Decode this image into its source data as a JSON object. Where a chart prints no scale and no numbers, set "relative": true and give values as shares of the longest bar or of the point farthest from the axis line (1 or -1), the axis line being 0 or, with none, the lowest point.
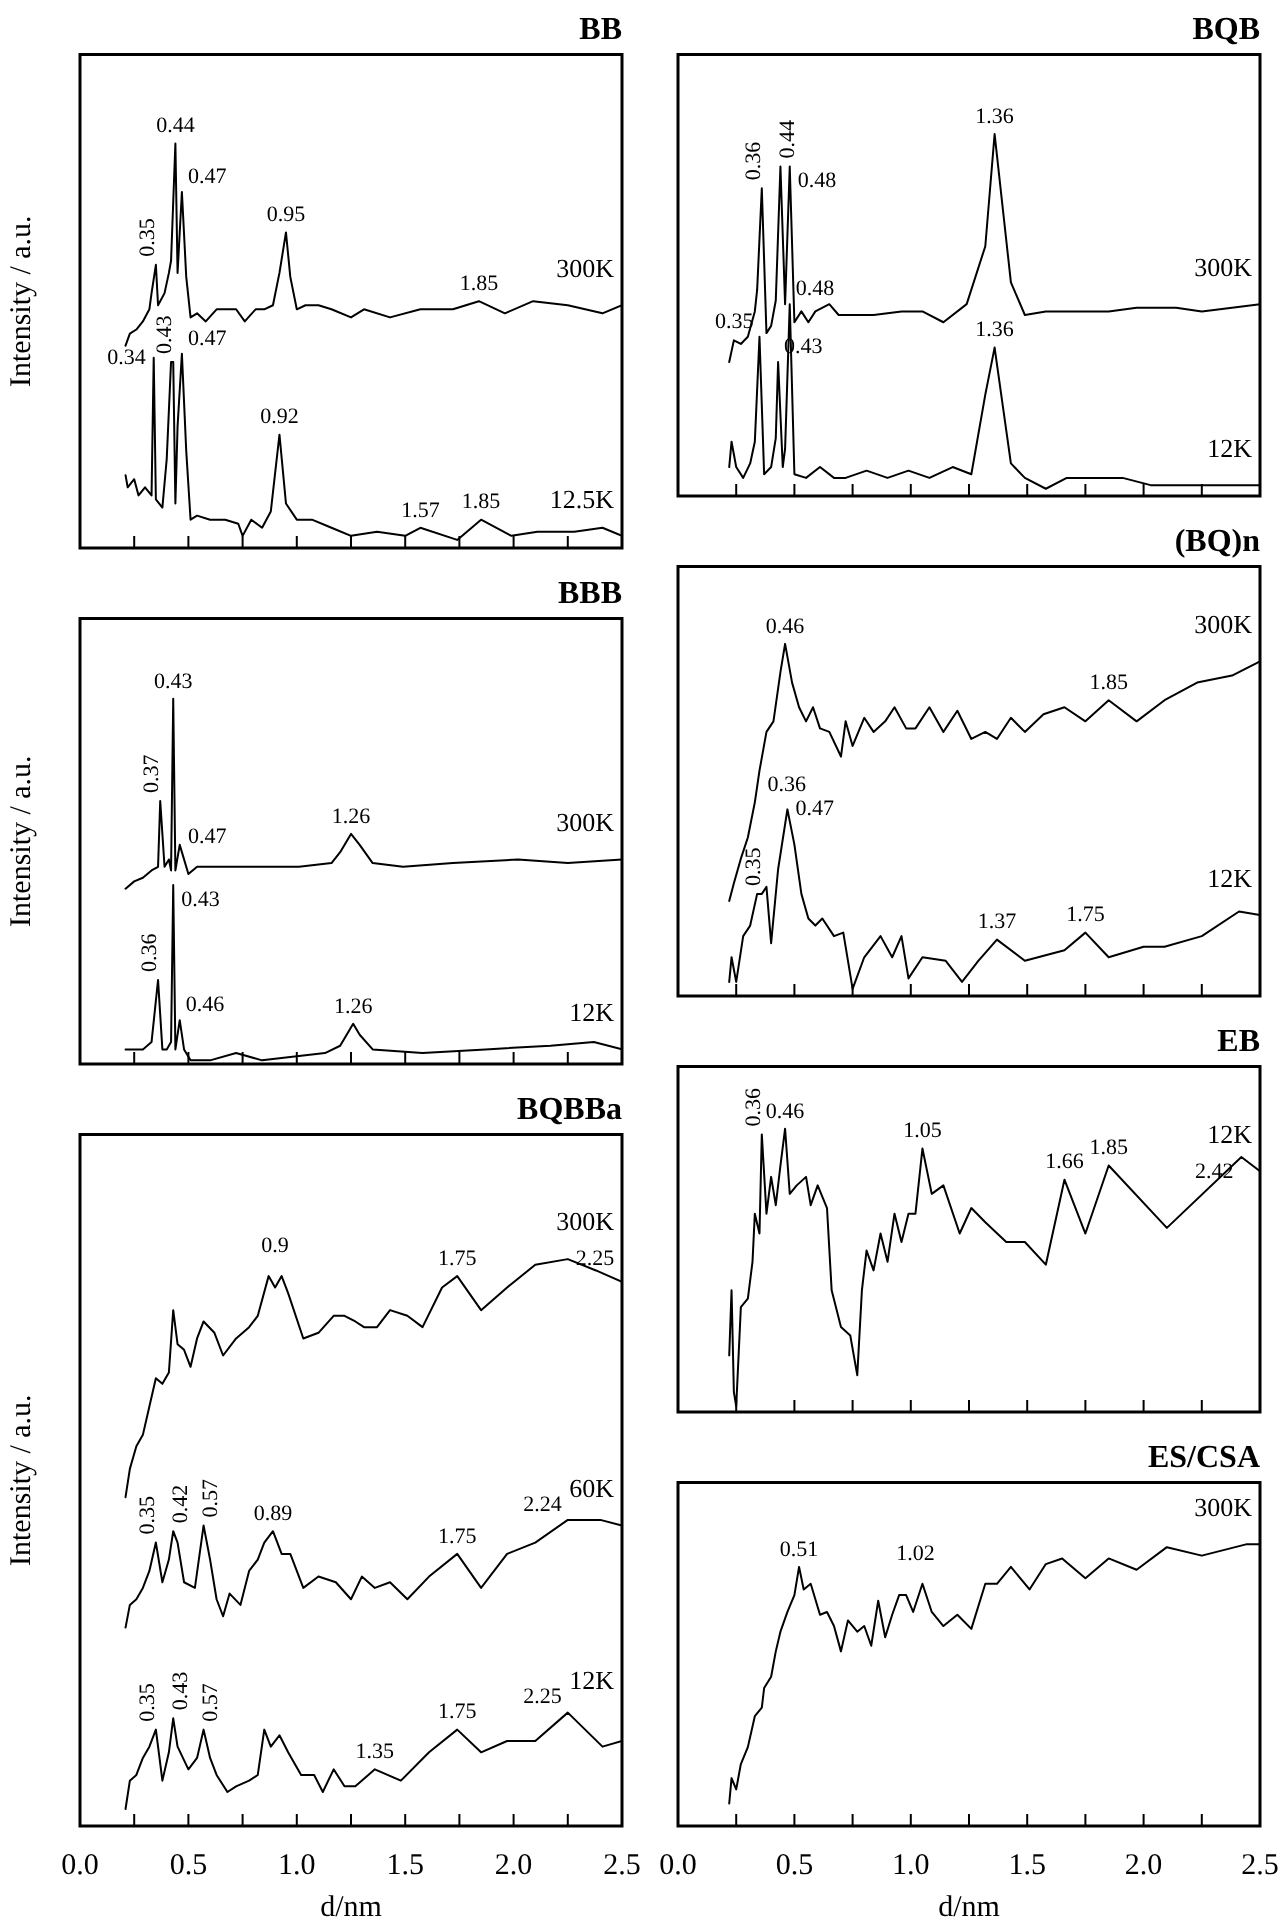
{
  "chart_data": [
    {
      "type": "line",
      "title": "BB",
      "ylabel": "Intensity / a.u.",
      "relative": true,
      "xlim": [
        0,
        2.5
      ],
      "xticks": [
        {
          "value": 0,
          "label": null
        },
        {
          "value": 0.25,
          "label": null
        },
        {
          "value": 0.5,
          "label": null
        },
        {
          "value": 0.75,
          "label": null
        },
        {
          "value": 1,
          "label": null
        },
        {
          "value": 1.25,
          "label": null
        },
        {
          "value": 1.5,
          "label": null
        },
        {
          "value": 1.75,
          "label": null
        },
        {
          "value": 2,
          "label": null
        },
        {
          "value": 2.25,
          "label": null
        },
        {
          "value": 2.5,
          "label": null
        }
      ],
      "tick_labels": false,
      "marker": "none",
      "line_style": "solid",
      "series": [
        {
          "name": "300K",
          "color": "#000000",
          "x": [
            0.21,
            0.23,
            0.26,
            0.29,
            0.32,
            0.33,
            0.35,
            0.36,
            0.39,
            0.41,
            0.42,
            0.44,
            0.45,
            0.47,
            0.49,
            0.51,
            0.54,
            0.58,
            0.63,
            0.67,
            0.72,
            0.76,
            0.81,
            0.85,
            0.89,
            0.92,
            0.95,
            0.97,
            1.0,
            1.04,
            1.1,
            1.16,
            1.25,
            1.31,
            1.43,
            1.57,
            1.72,
            1.84,
            1.96,
            2.09,
            2.25,
            2.41,
            2.5
          ],
          "values": [
            0.5,
            0.53,
            0.54,
            0.56,
            0.59,
            0.63,
            0.7,
            0.6,
            0.63,
            0.68,
            0.71,
            1.0,
            0.68,
            0.88,
            0.67,
            0.57,
            0.58,
            0.56,
            0.59,
            0.59,
            0.59,
            0.56,
            0.59,
            0.59,
            0.6,
            0.68,
            0.78,
            0.67,
            0.59,
            0.6,
            0.6,
            0.59,
            0.57,
            0.59,
            0.57,
            0.59,
            0.59,
            0.61,
            0.58,
            0.61,
            0.6,
            0.58,
            0.6
          ]
        },
        {
          "name": "12.5K",
          "color": "#000000",
          "x": [
            0.21,
            0.22,
            0.25,
            0.27,
            0.3,
            0.33,
            0.34,
            0.35,
            0.38,
            0.4,
            0.42,
            0.43,
            0.44,
            0.45,
            0.47,
            0.49,
            0.51,
            0.54,
            0.6,
            0.67,
            0.73,
            0.75,
            0.79,
            0.84,
            0.88,
            0.92,
            0.95,
            1.0,
            1.07,
            1.16,
            1.25,
            1.37,
            1.5,
            1.57,
            1.74,
            1.85,
            1.99,
            2.11,
            2.28,
            2.41,
            2.5
          ],
          "values": [
            0.18,
            0.15,
            0.17,
            0.13,
            0.15,
            0.13,
            0.47,
            0.12,
            0.1,
            0.22,
            0.46,
            0.46,
            0.11,
            0.3,
            0.48,
            0.24,
            0.07,
            0.08,
            0.07,
            0.07,
            0.06,
            0.03,
            0.07,
            0.05,
            0.09,
            0.28,
            0.11,
            0.07,
            0.07,
            0.05,
            0.03,
            0.04,
            0.03,
            0.05,
            0.02,
            0.07,
            0.03,
            0.04,
            0.04,
            0.05,
            0.03
          ]
        }
      ],
      "annotations": [
        {
          "text": "0.35",
          "x": 0.35,
          "y": 0.7
        },
        {
          "text": "0.44",
          "x": 0.44,
          "y": 1.0
        },
        {
          "text": "0.47",
          "x": 0.47,
          "y": 0.88
        },
        {
          "text": "0.95",
          "x": 0.95,
          "y": 0.78
        },
        {
          "text": "1.85",
          "x": 1.84,
          "y": 0.61
        },
        {
          "text": "0.34",
          "x": 0.34,
          "y": 0.47
        },
        {
          "text": "0.43",
          "x": 0.43,
          "y": 0.46
        },
        {
          "text": "0.47",
          "x": 0.47,
          "y": 0.48
        },
        {
          "text": "0.92",
          "x": 0.92,
          "y": 0.28
        },
        {
          "text": "1.57",
          "x": 1.57,
          "y": 0.05
        },
        {
          "text": "1.85",
          "x": 1.85,
          "y": 0.07
        }
      ]
    },
    {
      "type": "line",
      "title": "BBB",
      "ylabel": "Intensity / a.u.",
      "relative": true,
      "xlim": [
        0,
        2.5
      ],
      "xticks": [
        {
          "value": 0,
          "label": null
        },
        {
          "value": 0.25,
          "label": null
        },
        {
          "value": 0.5,
          "label": null
        },
        {
          "value": 0.75,
          "label": null
        },
        {
          "value": 1,
          "label": null
        },
        {
          "value": 1.25,
          "label": null
        },
        {
          "value": 1.5,
          "label": null
        },
        {
          "value": 1.75,
          "label": null
        },
        {
          "value": 2,
          "label": null
        },
        {
          "value": 2.25,
          "label": null
        },
        {
          "value": 2.5,
          "label": null
        }
      ],
      "tick_labels": false,
      "marker": "none",
      "line_style": "solid",
      "series": [
        {
          "name": "300K",
          "color": "#000000",
          "x": [
            0.21,
            0.25,
            0.29,
            0.33,
            0.36,
            0.37,
            0.39,
            0.41,
            0.42,
            0.43,
            0.44,
            0.46,
            0.47,
            0.5,
            0.54,
            0.63,
            0.78,
            0.9,
            1.01,
            1.16,
            1.2,
            1.25,
            1.29,
            1.35,
            1.49,
            1.72,
            2.02,
            2.25,
            2.5
          ],
          "values": [
            0.48,
            0.5,
            0.51,
            0.53,
            0.54,
            0.72,
            0.54,
            0.56,
            0.53,
            1.0,
            0.53,
            0.6,
            0.58,
            0.52,
            0.54,
            0.54,
            0.54,
            0.54,
            0.54,
            0.55,
            0.58,
            0.63,
            0.6,
            0.55,
            0.54,
            0.55,
            0.56,
            0.55,
            0.56
          ]
        },
        {
          "name": "12K",
          "color": "#000000",
          "x": [
            0.21,
            0.25,
            0.29,
            0.33,
            0.36,
            0.38,
            0.4,
            0.42,
            0.43,
            0.44,
            0.46,
            0.48,
            0.51,
            0.6,
            0.72,
            0.84,
            0.98,
            1.13,
            1.2,
            1.26,
            1.29,
            1.35,
            1.58,
            1.87,
            2.17,
            2.37,
            2.5
          ],
          "values": [
            0.04,
            0.04,
            0.04,
            0.06,
            0.23,
            0.04,
            0.04,
            0.06,
            0.49,
            0.04,
            0.12,
            0.04,
            0.01,
            0.01,
            0.03,
            0.01,
            0.02,
            0.03,
            0.05,
            0.11,
            0.08,
            0.04,
            0.03,
            0.04,
            0.05,
            0.06,
            0.04
          ]
        }
      ],
      "annotations": [
        {
          "text": "0.37",
          "x": 0.37,
          "y": 0.72
        },
        {
          "text": "0.43",
          "x": 0.43,
          "y": 1.0
        },
        {
          "text": "0.47",
          "x": 0.47,
          "y": 0.58
        },
        {
          "text": "1.26",
          "x": 1.25,
          "y": 0.63
        },
        {
          "text": "0.36",
          "x": 0.36,
          "y": 0.23
        },
        {
          "text": "0.43",
          "x": 0.43,
          "y": 0.49
        },
        {
          "text": "0.46",
          "x": 0.46,
          "y": 0.12
        },
        {
          "text": "1.26",
          "x": 1.26,
          "y": 0.11
        }
      ]
    },
    {
      "type": "line",
      "title": "BQBBa",
      "xlabel": "d/nm",
      "ylabel": "Intensity / a.u.",
      "relative": true,
      "xlim": [
        0,
        2.5
      ],
      "xticks": [
        {
          "value": 0,
          "label": "0.0"
        },
        {
          "value": 0.25,
          "label": null
        },
        {
          "value": 0.5,
          "label": "0.5"
        },
        {
          "value": 0.75,
          "label": null
        },
        {
          "value": 1,
          "label": "1.0"
        },
        {
          "value": 1.25,
          "label": null
        },
        {
          "value": 1.5,
          "label": "1.5"
        },
        {
          "value": 1.75,
          "label": null
        },
        {
          "value": 2,
          "label": "2.0"
        },
        {
          "value": 2.25,
          "label": null
        },
        {
          "value": 2.5,
          "label": "2.5"
        }
      ],
      "tick_labels": "x",
      "marker": "none",
      "line_style": "solid",
      "series": [
        {
          "name": "300K",
          "color": "#000000",
          "x": [
            0.21,
            0.23,
            0.26,
            0.29,
            0.32,
            0.35,
            0.38,
            0.41,
            0.43,
            0.45,
            0.48,
            0.51,
            0.54,
            0.57,
            0.62,
            0.66,
            0.72,
            0.78,
            0.82,
            0.87,
            0.9,
            0.93,
            0.96,
            1.03,
            1.1,
            1.17,
            1.22,
            1.27,
            1.31,
            1.37,
            1.43,
            1.51,
            1.58,
            1.67,
            1.74,
            1.85,
            1.97,
            2.1,
            2.25,
            2.38,
            2.5
          ],
          "values": [
            0.58,
            0.63,
            0.67,
            0.69,
            0.74,
            0.79,
            0.78,
            0.8,
            0.91,
            0.85,
            0.84,
            0.81,
            0.86,
            0.89,
            0.87,
            0.83,
            0.86,
            0.88,
            0.9,
            0.97,
            0.95,
            0.97,
            0.94,
            0.86,
            0.87,
            0.9,
            0.9,
            0.89,
            0.88,
            0.88,
            0.91,
            0.9,
            0.88,
            0.95,
            0.97,
            0.91,
            0.95,
            0.99,
            1.0,
            0.98,
            0.96
          ]
        },
        {
          "name": "60K",
          "color": "#000000",
          "x": [
            0.21,
            0.23,
            0.26,
            0.29,
            0.32,
            0.35,
            0.38,
            0.41,
            0.43,
            0.45,
            0.48,
            0.53,
            0.57,
            0.6,
            0.63,
            0.66,
            0.69,
            0.74,
            0.78,
            0.82,
            0.85,
            0.89,
            0.93,
            0.97,
            1.03,
            1.1,
            1.18,
            1.25,
            1.3,
            1.36,
            1.43,
            1.51,
            1.61,
            1.74,
            1.85,
            1.97,
            2.1,
            2.25,
            2.4,
            2.5
          ],
          "values": [
            0.35,
            0.39,
            0.4,
            0.42,
            0.45,
            0.5,
            0.43,
            0.47,
            0.52,
            0.5,
            0.43,
            0.42,
            0.53,
            0.47,
            0.4,
            0.37,
            0.41,
            0.39,
            0.45,
            0.47,
            0.5,
            0.52,
            0.48,
            0.48,
            0.42,
            0.44,
            0.43,
            0.4,
            0.44,
            0.42,
            0.43,
            0.4,
            0.44,
            0.48,
            0.42,
            0.48,
            0.5,
            0.54,
            0.54,
            0.53
          ]
        },
        {
          "name": "12K",
          "color": "#000000",
          "x": [
            0.21,
            0.23,
            0.26,
            0.29,
            0.32,
            0.35,
            0.38,
            0.41,
            0.43,
            0.45,
            0.5,
            0.54,
            0.57,
            0.6,
            0.63,
            0.68,
            0.72,
            0.78,
            0.82,
            0.85,
            0.88,
            0.92,
            0.96,
            1.02,
            1.08,
            1.12,
            1.17,
            1.22,
            1.27,
            1.36,
            1.48,
            1.61,
            1.74,
            1.85,
            1.97,
            2.1,
            2.25,
            2.41,
            2.5
          ],
          "values": [
            0.03,
            0.08,
            0.09,
            0.12,
            0.14,
            0.17,
            0.08,
            0.13,
            0.19,
            0.14,
            0.1,
            0.12,
            0.17,
            0.12,
            0.09,
            0.06,
            0.07,
            0.08,
            0.09,
            0.17,
            0.14,
            0.16,
            0.13,
            0.09,
            0.09,
            0.06,
            0.1,
            0.07,
            0.07,
            0.1,
            0.08,
            0.13,
            0.17,
            0.13,
            0.15,
            0.15,
            0.2,
            0.14,
            0.15
          ]
        }
      ],
      "annotations": [
        {
          "text": "0.9",
          "x": 0.9,
          "y": 0.95
        },
        {
          "text": "1.75",
          "x": 1.74,
          "y": 0.97
        },
        {
          "text": "2.25",
          "x": 2.25,
          "y": 1.0
        },
        {
          "text": "0.35",
          "x": 0.35,
          "y": 0.5
        },
        {
          "text": "0.42",
          "x": 0.43,
          "y": 0.52
        },
        {
          "text": "0.57",
          "x": 0.57,
          "y": 0.53
        },
        {
          "text": "0.89",
          "x": 0.89,
          "y": 0.52
        },
        {
          "text": "1.75",
          "x": 1.74,
          "y": 0.48
        },
        {
          "text": "2.24",
          "x": 2.25,
          "y": 0.54
        },
        {
          "text": "0.35",
          "x": 0.35,
          "y": 0.17
        },
        {
          "text": "0.43",
          "x": 0.43,
          "y": 0.19
        },
        {
          "text": "0.57",
          "x": 0.57,
          "y": 0.17
        },
        {
          "text": "1.35",
          "x": 1.36,
          "y": 0.1
        },
        {
          "text": "1.75",
          "x": 1.74,
          "y": 0.17
        },
        {
          "text": "2.25",
          "x": 2.25,
          "y": 0.2
        }
      ]
    },
    {
      "type": "line",
      "title": "BQB",
      "relative": true,
      "xlim": [
        0,
        2.5
      ],
      "xticks": [
        {
          "value": 0,
          "label": null
        },
        {
          "value": 0.25,
          "label": null
        },
        {
          "value": 0.5,
          "label": null
        },
        {
          "value": 0.75,
          "label": null
        },
        {
          "value": 1,
          "label": null
        },
        {
          "value": 1.25,
          "label": null
        },
        {
          "value": 1.5,
          "label": null
        },
        {
          "value": 1.75,
          "label": null
        },
        {
          "value": 2,
          "label": null
        },
        {
          "value": 2.25,
          "label": null
        },
        {
          "value": 2.5,
          "label": null
        }
      ],
      "tick_labels": false,
      "marker": "none",
      "line_style": "solid",
      "series": [
        {
          "name": "300K",
          "color": "#000000",
          "x": [
            0.22,
            0.24,
            0.27,
            0.3,
            0.33,
            0.34,
            0.36,
            0.38,
            0.4,
            0.42,
            0.44,
            0.46,
            0.48,
            0.5,
            0.53,
            0.56,
            0.59,
            0.65,
            0.69,
            0.75,
            0.84,
            0.96,
            1.05,
            1.14,
            1.24,
            1.32,
            1.36,
            1.43,
            1.49,
            1.58,
            1.7,
            1.85,
            1.97,
            2.14,
            2.25,
            2.38,
            2.5
          ],
          "values": [
            0.37,
            0.43,
            0.42,
            0.44,
            0.51,
            0.57,
            0.85,
            0.45,
            0.47,
            0.54,
            0.91,
            0.53,
            0.91,
            0.48,
            0.51,
            0.48,
            0.51,
            0.53,
            0.5,
            0.5,
            0.5,
            0.51,
            0.51,
            0.48,
            0.53,
            0.69,
            1.0,
            0.59,
            0.5,
            0.51,
            0.51,
            0.51,
            0.52,
            0.52,
            0.51,
            0.52,
            0.53
          ]
        },
        {
          "name": "12K",
          "color": "#000000",
          "x": [
            0.22,
            0.23,
            0.25,
            0.28,
            0.31,
            0.33,
            0.35,
            0.37,
            0.4,
            0.42,
            0.43,
            0.45,
            0.46,
            0.48,
            0.5,
            0.55,
            0.61,
            0.67,
            0.72,
            0.81,
            0.9,
            0.99,
            1.08,
            1.18,
            1.26,
            1.32,
            1.36,
            1.43,
            1.49,
            1.58,
            1.67,
            1.76,
            1.91,
            2.03,
            2.2,
            2.5
          ],
          "values": [
            0.08,
            0.15,
            0.08,
            0.05,
            0.09,
            0.15,
            0.44,
            0.06,
            0.08,
            0.16,
            0.37,
            0.08,
            0.13,
            0.53,
            0.06,
            0.05,
            0.08,
            0.05,
            0.05,
            0.07,
            0.05,
            0.07,
            0.05,
            0.08,
            0.06,
            0.28,
            0.41,
            0.09,
            0.05,
            0.02,
            0.05,
            0.05,
            0.05,
            0.03,
            0.03,
            0.03
          ]
        }
      ],
      "annotations": [
        {
          "text": "0.36",
          "x": 0.36,
          "y": 0.85
        },
        {
          "text": "0.44",
          "x": 0.44,
          "y": 0.91
        },
        {
          "text": "0.48",
          "x": 0.48,
          "y": 0.91
        },
        {
          "text": "1.36",
          "x": 1.36,
          "y": 1.0
        },
        {
          "text": "0.35",
          "x": 0.35,
          "y": 0.44
        },
        {
          "text": "0.43",
          "x": 0.43,
          "y": 0.37
        },
        {
          "text": "0.48",
          "x": 0.48,
          "y": 0.53
        },
        {
          "text": "1.36",
          "x": 1.36,
          "y": 0.41
        }
      ]
    },
    {
      "type": "line",
      "title": "(BQ)n",
      "relative": true,
      "xlim": [
        0,
        2.5
      ],
      "xticks": [
        {
          "value": 0,
          "label": null
        },
        {
          "value": 0.25,
          "label": null
        },
        {
          "value": 0.5,
          "label": null
        },
        {
          "value": 0.75,
          "label": null
        },
        {
          "value": 1,
          "label": null
        },
        {
          "value": 1.25,
          "label": null
        },
        {
          "value": 1.5,
          "label": null
        },
        {
          "value": 1.75,
          "label": null
        },
        {
          "value": 2,
          "label": null
        },
        {
          "value": 2.25,
          "label": null
        },
        {
          "value": 2.5,
          "label": null
        }
      ],
      "tick_labels": false,
      "marker": "none",
      "line_style": "solid",
      "series": [
        {
          "name": "300K",
          "color": "#000000",
          "x": [
            0.22,
            0.24,
            0.27,
            0.3,
            0.33,
            0.35,
            0.38,
            0.41,
            0.44,
            0.46,
            0.49,
            0.52,
            0.55,
            0.58,
            0.61,
            0.65,
            0.7,
            0.72,
            0.75,
            0.8,
            0.84,
            0.89,
            0.93,
            0.98,
            1.02,
            1.08,
            1.14,
            1.2,
            1.26,
            1.32,
            1.37,
            1.43,
            1.49,
            1.57,
            1.66,
            1.75,
            1.85,
            1.97,
            2.09,
            2.23,
            2.38,
            2.5
          ],
          "values": [
            0.27,
            0.32,
            0.39,
            0.45,
            0.55,
            0.64,
            0.75,
            0.78,
            0.92,
            1.0,
            0.89,
            0.82,
            0.78,
            0.82,
            0.76,
            0.75,
            0.68,
            0.78,
            0.71,
            0.79,
            0.75,
            0.78,
            0.82,
            0.76,
            0.76,
            0.82,
            0.75,
            0.81,
            0.73,
            0.75,
            0.73,
            0.79,
            0.75,
            0.8,
            0.82,
            0.78,
            0.84,
            0.78,
            0.84,
            0.89,
            0.91,
            0.95
          ]
        },
        {
          "name": "12K",
          "color": "#000000",
          "x": [
            0.22,
            0.23,
            0.25,
            0.28,
            0.31,
            0.34,
            0.36,
            0.38,
            0.4,
            0.43,
            0.47,
            0.5,
            0.53,
            0.56,
            0.59,
            0.62,
            0.67,
            0.71,
            0.75,
            0.8,
            0.87,
            0.92,
            0.96,
            0.99,
            1.05,
            1.15,
            1.22,
            1.29,
            1.37,
            1.49,
            1.66,
            1.75,
            1.85,
            2.0,
            2.09,
            2.25,
            2.41,
            2.5
          ],
          "values": [
            0.04,
            0.11,
            0.04,
            0.17,
            0.2,
            0.29,
            0.29,
            0.31,
            0.15,
            0.36,
            0.53,
            0.43,
            0.29,
            0.22,
            0.2,
            0.22,
            0.17,
            0.18,
            0.02,
            0.11,
            0.17,
            0.11,
            0.17,
            0.05,
            0.11,
            0.1,
            0.04,
            0.1,
            0.16,
            0.1,
            0.13,
            0.18,
            0.11,
            0.14,
            0.14,
            0.17,
            0.24,
            0.23
          ]
        }
      ],
      "annotations": [
        {
          "text": "0.36",
          "x": 0.35,
          "y": 0.64
        },
        {
          "text": "0.46",
          "x": 0.46,
          "y": 1.0
        },
        {
          "text": "1.85",
          "x": 1.85,
          "y": 0.84
        },
        {
          "text": "0.35",
          "x": 0.36,
          "y": 0.29
        },
        {
          "text": "0.47",
          "x": 0.47,
          "y": 0.53
        },
        {
          "text": "1.37",
          "x": 1.37,
          "y": 0.16
        },
        {
          "text": "1.75",
          "x": 1.75,
          "y": 0.18
        }
      ]
    },
    {
      "type": "line",
      "title": "EB",
      "relative": true,
      "xlim": [
        0,
        2.5
      ],
      "xticks": [
        {
          "value": 0,
          "label": null
        },
        {
          "value": 0.25,
          "label": null
        },
        {
          "value": 0.5,
          "label": null
        },
        {
          "value": 0.75,
          "label": null
        },
        {
          "value": 1,
          "label": null
        },
        {
          "value": 1.25,
          "label": null
        },
        {
          "value": 1.5,
          "label": null
        },
        {
          "value": 1.75,
          "label": null
        },
        {
          "value": 2,
          "label": null
        },
        {
          "value": 2.25,
          "label": null
        },
        {
          "value": 2.5,
          "label": null
        }
      ],
      "tick_labels": false,
      "marker": "none",
      "line_style": "solid",
      "series": [
        {
          "name": "12K",
          "color": "#000000",
          "x": [
            0.22,
            0.23,
            0.24,
            0.25,
            0.27,
            0.3,
            0.32,
            0.33,
            0.35,
            0.36,
            0.38,
            0.4,
            0.42,
            0.44,
            0.46,
            0.48,
            0.51,
            0.55,
            0.57,
            0.6,
            0.64,
            0.66,
            0.7,
            0.74,
            0.77,
            0.79,
            0.81,
            0.84,
            0.87,
            0.9,
            0.93,
            0.96,
            0.99,
            1.02,
            1.05,
            1.09,
            1.14,
            1.21,
            1.26,
            1.32,
            1.41,
            1.49,
            1.58,
            1.66,
            1.75,
            1.85,
            2.1,
            2.42,
            2.5
          ],
          "values": [
            0.2,
            0.43,
            0.07,
            0.02,
            0.37,
            0.4,
            0.53,
            0.7,
            0.63,
            0.98,
            0.7,
            0.83,
            0.73,
            0.87,
            1.0,
            0.77,
            0.8,
            0.83,
            0.73,
            0.8,
            0.72,
            0.43,
            0.3,
            0.27,
            0.13,
            0.43,
            0.57,
            0.5,
            0.63,
            0.53,
            0.7,
            0.6,
            0.7,
            0.7,
            0.93,
            0.77,
            0.8,
            0.63,
            0.72,
            0.67,
            0.6,
            0.6,
            0.52,
            0.82,
            0.63,
            0.87,
            0.65,
            0.9,
            0.85
          ]
        }
      ],
      "annotations": [
        {
          "text": "0.36",
          "x": 0.36,
          "y": 0.98
        },
        {
          "text": "0.46",
          "x": 0.46,
          "y": 1.0
        },
        {
          "text": "1.05",
          "x": 1.05,
          "y": 0.93
        },
        {
          "text": "1.66",
          "x": 1.66,
          "y": 0.82
        },
        {
          "text": "1.85",
          "x": 1.85,
          "y": 0.87
        },
        {
          "text": "2.42",
          "x": 2.42,
          "y": 0.9
        }
      ]
    },
    {
      "type": "line",
      "title": "ES/CSA",
      "xlabel": "d/nm",
      "relative": true,
      "xlim": [
        0,
        2.5
      ],
      "xticks": [
        {
          "value": 0,
          "label": "0.0"
        },
        {
          "value": 0.25,
          "label": null
        },
        {
          "value": 0.5,
          "label": "0.5"
        },
        {
          "value": 0.75,
          "label": null
        },
        {
          "value": 1,
          "label": "1.0"
        },
        {
          "value": 1.25,
          "label": null
        },
        {
          "value": 1.5,
          "label": "1.5"
        },
        {
          "value": 1.75,
          "label": null
        },
        {
          "value": 2,
          "label": "2.0"
        },
        {
          "value": 2.25,
          "label": null
        },
        {
          "value": 2.5,
          "label": "2.5"
        }
      ],
      "tick_labels": "x",
      "marker": "none",
      "line_style": "solid",
      "series": [
        {
          "name": "300K",
          "color": "#000000",
          "x": [
            0.22,
            0.23,
            0.25,
            0.27,
            0.3,
            0.33,
            0.36,
            0.37,
            0.4,
            0.42,
            0.44,
            0.47,
            0.5,
            0.52,
            0.54,
            0.57,
            0.61,
            0.64,
            0.67,
            0.7,
            0.73,
            0.77,
            0.8,
            0.83,
            0.86,
            0.89,
            0.92,
            0.95,
            0.98,
            1.01,
            1.05,
            1.09,
            1.14,
            1.2,
            1.26,
            1.32,
            1.37,
            1.43,
            1.51,
            1.58,
            1.65,
            1.75,
            1.85,
            1.97,
            2.1,
            2.25,
            2.44,
            2.5
          ],
          "values": [
            0.08,
            0.17,
            0.13,
            0.22,
            0.28,
            0.39,
            0.42,
            0.49,
            0.53,
            0.62,
            0.69,
            0.76,
            0.82,
            0.92,
            0.84,
            0.86,
            0.75,
            0.76,
            0.71,
            0.62,
            0.73,
            0.69,
            0.71,
            0.64,
            0.8,
            0.67,
            0.75,
            0.82,
            0.82,
            0.76,
            0.86,
            0.76,
            0.71,
            0.75,
            0.7,
            0.86,
            0.86,
            0.92,
            0.84,
            0.93,
            0.95,
            0.88,
            0.95,
            0.91,
            0.99,
            0.96,
            1.0,
            1.0
          ]
        }
      ],
      "annotations": [
        {
          "text": "0.51",
          "x": 0.52,
          "y": 0.92
        },
        {
          "text": "1.02",
          "x": 1.02,
          "y": 0.82
        }
      ]
    }
  ]
}
